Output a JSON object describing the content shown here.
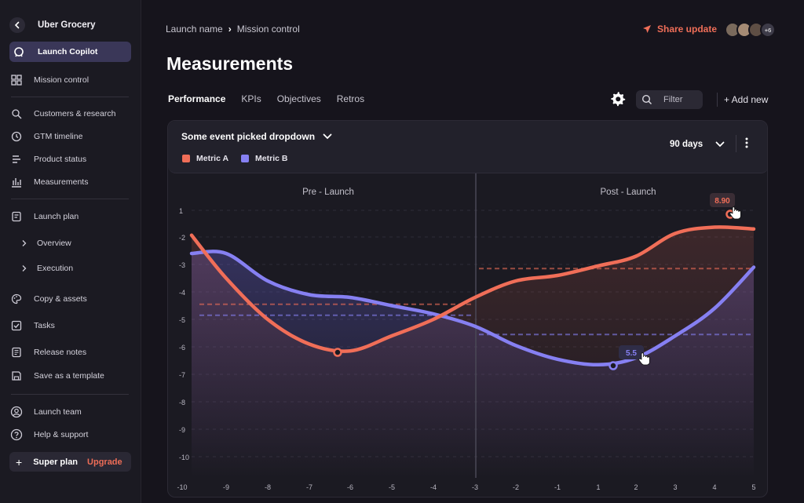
{
  "sidebar": {
    "brand": "Uber Grocery",
    "active": "Launch Copilot",
    "items": [
      {
        "label": "Mission control",
        "icon": "grid-icon"
      },
      {
        "label": "Customers & research",
        "icon": "research-icon"
      },
      {
        "label": "GTM timeline",
        "icon": "clock-icon"
      },
      {
        "label": "Product status",
        "icon": "lines-icon"
      },
      {
        "label": "Measurements",
        "icon": "bar-chart-icon"
      },
      {
        "label": "Launch plan",
        "icon": "document-icon"
      },
      {
        "label": "Overview",
        "icon": "chevron-right-icon"
      },
      {
        "label": "Execution",
        "icon": "chevron-right-icon"
      },
      {
        "label": "Copy & assets",
        "icon": "palette-icon"
      },
      {
        "label": "Tasks",
        "icon": "checkbox-icon"
      },
      {
        "label": "Release notes",
        "icon": "notes-icon"
      },
      {
        "label": "Save as a template",
        "icon": "save-icon"
      },
      {
        "label": "Launch team",
        "icon": "team-icon"
      },
      {
        "label": "Help & support",
        "icon": "help-icon"
      }
    ],
    "plan": {
      "name": "Super plan",
      "upgrade": "Upgrade"
    }
  },
  "header": {
    "breadcrumb": [
      "Launch name",
      "Mission control"
    ],
    "share": "Share update",
    "avatars_more": "+6",
    "title": "Measurements",
    "tabs": [
      "Performance",
      "KPIs",
      "Objectives",
      "Retros"
    ],
    "active_tab": "Performance",
    "filter_placeholder": "Filter",
    "add_new": "+ Add new"
  },
  "card": {
    "event_select": "Some event picked dropdown",
    "range": "90 days",
    "sections": [
      "Pre - Launch",
      "Post - Launch"
    ],
    "tooltips": {
      "a": "8.90",
      "b": "5.5"
    }
  },
  "colors": {
    "accent": "#ef6e58",
    "metric_a": "#f06e58",
    "metric_b": "#8680f2",
    "active_bg": "#3a3758"
  },
  "chart_data": {
    "type": "line",
    "x": [
      -10,
      -9,
      -8,
      -7,
      -6,
      -5,
      -4,
      -3,
      -2,
      -1,
      1,
      2,
      3,
      4,
      5
    ],
    "x_ticks": [
      "-10",
      "-9",
      "-8",
      "-7",
      "-6",
      "-5",
      "-4",
      "-3",
      "-2",
      "-1",
      "1",
      "2",
      "3",
      "4",
      "5"
    ],
    "y_ticks": [
      "1",
      "-2",
      "-3",
      "-4",
      "-5",
      "-6",
      "-7",
      "-8",
      "-9",
      "-10"
    ],
    "ylim": [
      -10,
      1
    ],
    "grid": true,
    "legend": "top-left",
    "series": [
      {
        "name": "Metric A",
        "values": [
          -1.8,
          -3.5,
          -5.0,
          -5.9,
          -6.15,
          -5.6,
          -5.0,
          -4.2,
          -3.6,
          -3.4,
          -3.05,
          -2.7,
          -1.6,
          -0.9,
          -1.1
        ],
        "pre_avg": -4.45,
        "post_avg": -3.15
      },
      {
        "name": "Metric B",
        "values": [
          -2.6,
          -2.6,
          -3.6,
          -4.1,
          -4.2,
          -4.5,
          -4.8,
          -5.25,
          -5.95,
          -6.45,
          -6.65,
          -6.4,
          -5.6,
          -4.6,
          -3.1
        ],
        "pre_avg": -4.85,
        "post_avg": -5.55
      }
    ]
  }
}
